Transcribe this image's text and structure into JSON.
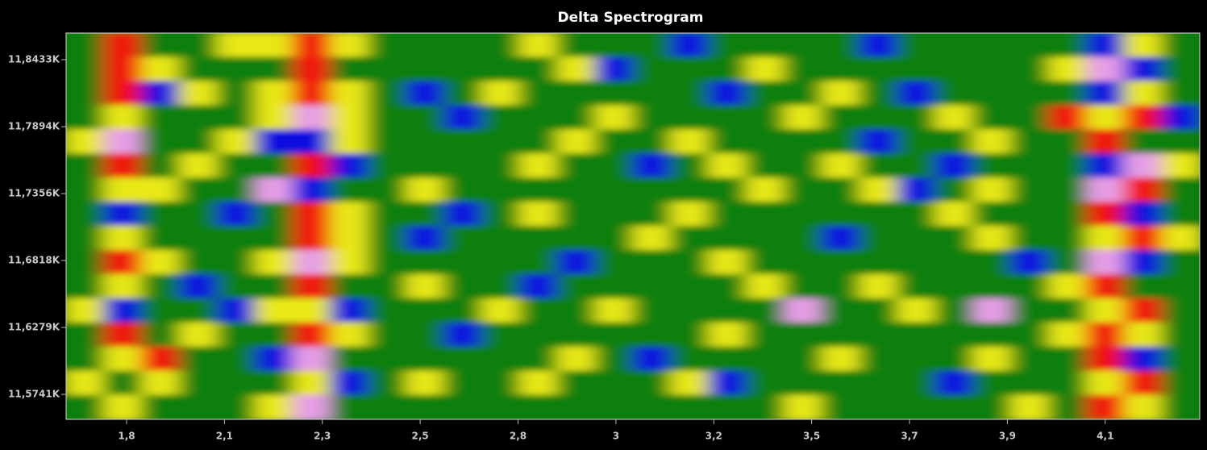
{
  "chart_data": {
    "type": "heatmap",
    "title": "Delta Spectrogram",
    "xlim": [
      1.675,
      4.374
    ],
    "xticks": [
      {
        "value": 1.819,
        "label": "1,8"
      },
      {
        "value": 2.052,
        "label": "2,1"
      },
      {
        "value": 2.285,
        "label": "2,3"
      },
      {
        "value": 2.518,
        "label": "2,5"
      },
      {
        "value": 2.751,
        "label": "2,8"
      },
      {
        "value": 2.984,
        "label": "3"
      },
      {
        "value": 3.217,
        "label": "3,2"
      },
      {
        "value": 3.45,
        "label": "3,5"
      },
      {
        "value": 3.683,
        "label": "3,7"
      },
      {
        "value": 3.916,
        "label": "3,9"
      },
      {
        "value": 4.149,
        "label": "4,1"
      }
    ],
    "ylim": [
      11554.0,
      11864.7
    ],
    "yticks": [
      {
        "value": 11574.1,
        "label": "11,5741K"
      },
      {
        "value": 11627.9,
        "label": "11,6279K"
      },
      {
        "value": 11681.8,
        "label": "11,6818K"
      },
      {
        "value": 11735.6,
        "label": "11,7356K"
      },
      {
        "value": 11789.4,
        "label": "11,7894K"
      },
      {
        "value": 11843.3,
        "label": "11,8433K"
      }
    ],
    "colorscale": [
      [
        -1,
        "#1010e0"
      ],
      [
        0,
        "#0a7f0a"
      ],
      [
        1,
        "#e8e818"
      ],
      [
        2,
        "#f21010"
      ],
      [
        3,
        "#e69ee6"
      ]
    ],
    "z": [
      [
        0,
        2,
        0,
        0,
        1,
        1,
        2,
        1,
        0,
        0,
        0,
        0,
        1,
        0,
        0,
        0,
        -1,
        0,
        0,
        0,
        0,
        -1,
        0,
        0,
        0,
        0,
        0,
        -1,
        1,
        0
      ],
      [
        0,
        2,
        1,
        0,
        0,
        0,
        2,
        0,
        0,
        0,
        0,
        0,
        0,
        1,
        -1,
        0,
        0,
        0,
        1,
        0,
        0,
        0,
        0,
        0,
        0,
        0,
        1,
        3,
        -1,
        0
      ],
      [
        0,
        2,
        -1,
        1,
        0,
        1,
        2,
        1,
        0,
        -1,
        0,
        1,
        0,
        0,
        0,
        0,
        0,
        -1,
        0,
        0,
        1,
        0,
        -1,
        0,
        0,
        0,
        0,
        -1,
        1,
        0
      ],
      [
        0,
        1,
        0,
        0,
        0,
        1,
        3,
        1,
        0,
        0,
        -1,
        0,
        0,
        0,
        1,
        0,
        0,
        0,
        0,
        1,
        0,
        0,
        0,
        1,
        0,
        0,
        2,
        1,
        2,
        -1
      ],
      [
        1,
        3,
        0,
        0,
        1,
        -1,
        -1,
        1,
        0,
        0,
        0,
        0,
        0,
        1,
        0,
        0,
        1,
        0,
        0,
        0,
        0,
        -1,
        0,
        0,
        1,
        0,
        0,
        2,
        0,
        0
      ],
      [
        0,
        2,
        0,
        1,
        0,
        0,
        2,
        -1,
        0,
        0,
        0,
        0,
        1,
        0,
        0,
        -1,
        0,
        1,
        0,
        0,
        1,
        0,
        0,
        -1,
        0,
        0,
        0,
        -1,
        3,
        1
      ],
      [
        0,
        1,
        1,
        0,
        0,
        3,
        -1,
        0,
        0,
        1,
        0,
        0,
        0,
        0,
        0,
        0,
        0,
        0,
        1,
        0,
        0,
        1,
        -1,
        0,
        1,
        0,
        0,
        3,
        2,
        0
      ],
      [
        0,
        -1,
        0,
        0,
        -1,
        0,
        2,
        1,
        0,
        0,
        -1,
        0,
        1,
        0,
        0,
        0,
        1,
        0,
        0,
        0,
        0,
        0,
        0,
        1,
        0,
        0,
        0,
        2,
        -1,
        0
      ],
      [
        0,
        1,
        0,
        0,
        0,
        0,
        2,
        1,
        0,
        -1,
        0,
        0,
        0,
        0,
        0,
        1,
        0,
        0,
        0,
        0,
        -1,
        0,
        0,
        0,
        1,
        0,
        0,
        1,
        2,
        1
      ],
      [
        0,
        2,
        1,
        0,
        0,
        1,
        3,
        1,
        0,
        0,
        0,
        0,
        0,
        -1,
        0,
        0,
        0,
        1,
        0,
        0,
        0,
        0,
        0,
        0,
        0,
        -1,
        0,
        3,
        -1,
        0
      ],
      [
        0,
        1,
        0,
        -1,
        0,
        0,
        2,
        0,
        0,
        1,
        0,
        0,
        -1,
        0,
        0,
        0,
        0,
        0,
        1,
        0,
        0,
        1,
        0,
        0,
        0,
        0,
        1,
        2,
        0,
        0
      ],
      [
        1,
        -1,
        0,
        0,
        -1,
        1,
        1,
        -1,
        0,
        0,
        0,
        1,
        0,
        0,
        1,
        0,
        0,
        0,
        0,
        3,
        0,
        0,
        1,
        0,
        3,
        0,
        0,
        1,
        2,
        0
      ],
      [
        0,
        2,
        0,
        1,
        0,
        0,
        2,
        1,
        0,
        0,
        -1,
        0,
        0,
        0,
        0,
        0,
        0,
        1,
        0,
        0,
        0,
        0,
        0,
        0,
        0,
        0,
        1,
        2,
        1,
        0
      ],
      [
        0,
        1,
        2,
        0,
        0,
        -1,
        3,
        0,
        0,
        0,
        0,
        0,
        0,
        1,
        0,
        -1,
        0,
        0,
        0,
        0,
        1,
        0,
        0,
        0,
        1,
        0,
        0,
        2,
        -1,
        0
      ],
      [
        1,
        0,
        1,
        0,
        0,
        0,
        1,
        -1,
        0,
        1,
        0,
        0,
        1,
        0,
        0,
        0,
        1,
        -1,
        0,
        0,
        0,
        0,
        0,
        -1,
        0,
        0,
        0,
        1,
        2,
        0
      ],
      [
        0,
        1,
        0,
        0,
        0,
        1,
        3,
        0,
        0,
        0,
        0,
        0,
        0,
        0,
        0,
        0,
        0,
        0,
        0,
        1,
        0,
        0,
        0,
        0,
        0,
        1,
        0,
        2,
        1,
        0
      ]
    ]
  }
}
